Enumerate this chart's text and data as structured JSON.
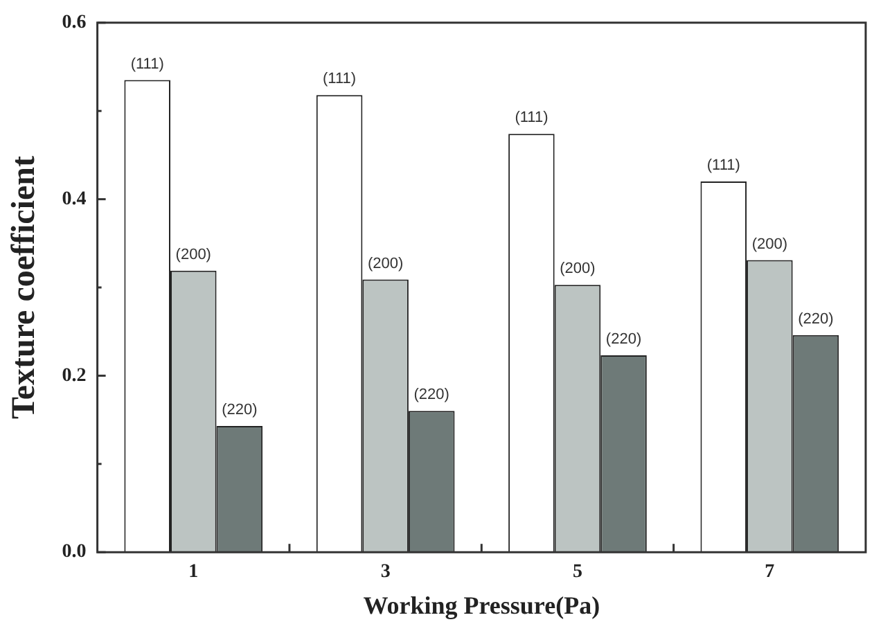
{
  "chart_data": {
    "type": "bar",
    "xlabel": "Working Pressure(Pa)",
    "ylabel": "Texture coefficient",
    "categories": [
      "1",
      "3",
      "5",
      "7"
    ],
    "series": [
      {
        "name": "(111)",
        "color": "#ffffff",
        "values": [
          0.535,
          0.518,
          0.474,
          0.42
        ]
      },
      {
        "name": "(200)",
        "color": "#bcc4c2",
        "values": [
          0.319,
          0.309,
          0.303,
          0.331
        ]
      },
      {
        "name": "(220)",
        "color": "#6e7a78",
        "values": [
          0.143,
          0.16,
          0.223,
          0.246
        ]
      }
    ],
    "ylim": [
      0,
      0.6
    ],
    "yticks": [
      {
        "value": 0,
        "label": "0.0"
      },
      {
        "value": 0.1,
        "label": null
      },
      {
        "value": 0.2,
        "label": "0.2"
      },
      {
        "value": 0.3,
        "label": null
      },
      {
        "value": 0.4,
        "label": "0.4"
      },
      {
        "value": 0.5,
        "label": null
      },
      {
        "value": 0.6,
        "label": "0.6"
      }
    ],
    "grid": false,
    "legend": false
  }
}
